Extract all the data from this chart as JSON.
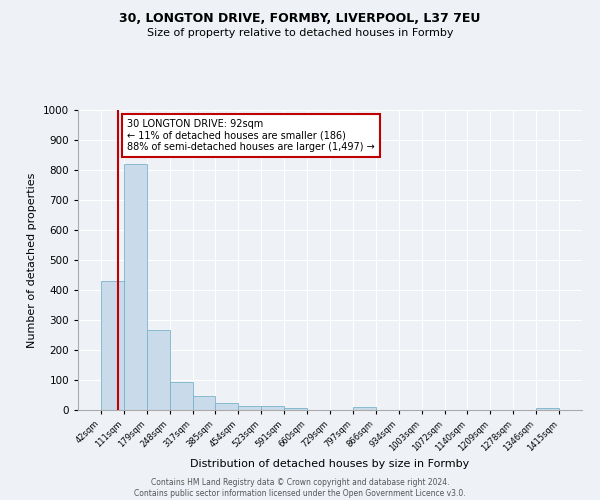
{
  "title": "30, LONGTON DRIVE, FORMBY, LIVERPOOL, L37 7EU",
  "subtitle": "Size of property relative to detached houses in Formby",
  "xlabel": "Distribution of detached houses by size in Formby",
  "ylabel": "Number of detached properties",
  "bar_edges": [
    42,
    111,
    179,
    248,
    317,
    385,
    454,
    523,
    591,
    660,
    729,
    797,
    866,
    934,
    1003,
    1072,
    1140,
    1209,
    1278,
    1346,
    1415
  ],
  "bar_heights": [
    430,
    820,
    267,
    92,
    46,
    22,
    15,
    13,
    8,
    0,
    0,
    10,
    0,
    0,
    0,
    0,
    0,
    0,
    0,
    8
  ],
  "bar_color": "#c9daea",
  "bar_edgecolor": "#7ab3cc",
  "property_value": 92,
  "property_line_color": "#c00000",
  "annotation_line1": "30 LONGTON DRIVE: 92sqm",
  "annotation_line2": "← 11% of detached houses are smaller (186)",
  "annotation_line3": "88% of semi-detached houses are larger (1,497) →",
  "annotation_box_color": "#c00000",
  "ylim": [
    0,
    1000
  ],
  "yticks": [
    0,
    100,
    200,
    300,
    400,
    500,
    600,
    700,
    800,
    900,
    1000
  ],
  "background_color": "#eef2f7",
  "grid_color": "#ffffff",
  "footer_line1": "Contains HM Land Registry data © Crown copyright and database right 2024.",
  "footer_line2": "Contains public sector information licensed under the Open Government Licence v3.0."
}
